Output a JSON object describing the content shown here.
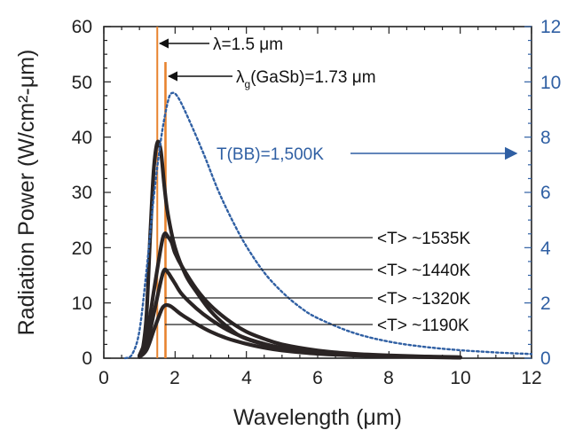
{
  "chart_data": {
    "type": "line",
    "xlabel": "Wavelength (μm)",
    "ylabel": "Radiation Power (W/cm²-μm)",
    "xlim": [
      0,
      12
    ],
    "ylim": [
      0,
      60
    ],
    "y2lim": [
      0,
      12
    ],
    "xticks": [
      "0",
      "2",
      "4",
      "6",
      "8",
      "10",
      "12"
    ],
    "yticks": [
      "0",
      "10",
      "20",
      "30",
      "40",
      "50",
      "60"
    ],
    "y2ticks": [
      "0",
      "2",
      "4",
      "6",
      "8",
      "10",
      "12"
    ],
    "series": [
      {
        "axis": "left",
        "style": "thick-dark",
        "x": [
          1.0,
          1.1,
          1.2,
          1.3,
          1.4,
          1.5,
          1.6,
          1.7,
          1.8,
          2.0,
          2.3,
          2.6,
          3.0,
          3.5,
          4.0,
          5.0,
          6.0,
          7.0,
          8.0,
          9.0,
          10.0
        ],
        "y": [
          0.5,
          2.0,
          8.0,
          22.0,
          34.0,
          39.0,
          37.5,
          31.0,
          26.0,
          20.0,
          15.0,
          12.0,
          8.5,
          5.5,
          3.5,
          1.8,
          1.0,
          0.6,
          0.4,
          0.25,
          0.15
        ]
      },
      {
        "axis": "left",
        "style": "thick-dark",
        "x": [
          1.0,
          1.2,
          1.4,
          1.6,
          1.7,
          1.8,
          1.9,
          2.0,
          2.2,
          2.6,
          3.0,
          3.5,
          4.0,
          4.5,
          5.0,
          6.0,
          7.0,
          8.0,
          9.0,
          10.0
        ],
        "y": [
          0.5,
          4.0,
          12.0,
          20.0,
          22.5,
          22.0,
          21.0,
          19.0,
          16.5,
          12.5,
          9.5,
          6.8,
          4.8,
          3.5,
          2.5,
          1.4,
          0.8,
          0.5,
          0.3,
          0.2
        ]
      },
      {
        "axis": "left",
        "style": "thick-dark",
        "x": [
          1.0,
          1.2,
          1.4,
          1.6,
          1.7,
          1.8,
          1.9,
          2.0,
          2.2,
          2.6,
          3.0,
          3.5,
          4.0,
          4.5,
          5.0,
          6.0,
          7.0,
          8.0,
          9.0,
          10.0
        ],
        "y": [
          0.3,
          2.5,
          8.0,
          14.0,
          16.0,
          15.5,
          14.5,
          13.5,
          11.5,
          9.0,
          7.0,
          5.0,
          3.6,
          2.6,
          1.9,
          1.1,
          0.65,
          0.4,
          0.25,
          0.15
        ]
      },
      {
        "axis": "left",
        "style": "thick-dark",
        "x": [
          1.0,
          1.2,
          1.4,
          1.6,
          1.7,
          1.8,
          1.9,
          2.0,
          2.2,
          2.6,
          3.0,
          3.5,
          4.0,
          4.5,
          5.0,
          6.0,
          7.0,
          8.0,
          9.0,
          10.0
        ],
        "y": [
          0.2,
          1.5,
          5.0,
          8.5,
          9.5,
          9.6,
          9.3,
          8.8,
          7.8,
          6.2,
          4.8,
          3.5,
          2.6,
          1.9,
          1.4,
          0.8,
          0.5,
          0.3,
          0.2,
          0.1
        ]
      },
      {
        "axis": "right",
        "style": "dashed-blue",
        "x": [
          0.6,
          0.8,
          1.0,
          1.2,
          1.4,
          1.6,
          1.8,
          1.93,
          2.1,
          2.4,
          2.8,
          3.2,
          3.6,
          4.0,
          4.5,
          5.0,
          5.5,
          6.0,
          7.0,
          8.0,
          9.0,
          10.0,
          11.0,
          12.0
        ],
        "y": [
          0.0,
          0.15,
          1.0,
          3.2,
          5.8,
          7.9,
          9.3,
          9.6,
          9.4,
          8.6,
          7.4,
          6.1,
          5.0,
          4.05,
          3.1,
          2.4,
          1.85,
          1.45,
          0.92,
          0.6,
          0.41,
          0.29,
          0.21,
          0.15
        ]
      }
    ],
    "vlines": [
      1.5,
      1.73
    ]
  },
  "annotations": {
    "lambda": "λ=1.5 μm",
    "lambda_g": "λ",
    "lambda_g_sub": "g",
    "lambda_g_rest": "(GaSb)=1.73 μm",
    "tbb": "T(BB)=1,500K",
    "t1": "<T> ~1535K",
    "t2": "<T> ~1440K",
    "t3": "<T> ~1320K",
    "t4": "<T> ~1190K"
  },
  "colors": {
    "dark": "#2a2424",
    "blue": "#2f5fa3",
    "orange": "#e8832e"
  }
}
